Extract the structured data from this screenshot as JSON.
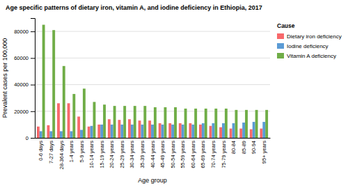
{
  "chart_data": {
    "type": "bar",
    "title": "Age specific patterns of dietary iron, vitamin A, and iodine deficiency in Ethiopia, 2017",
    "x_label": "Age group",
    "y_label": "Prevalent cases per 100,000",
    "legend_title": "Cause",
    "categories": [
      "0-6 days",
      "7-27 days",
      "28-364 days",
      "1-4 years",
      "5-9 years",
      "10-14 years",
      "15-19 years",
      "20-24 years",
      "25-29 years",
      "30-34 years",
      "35-39 years",
      "40-44 years",
      "45-49 years",
      "50-54 years",
      "55-59 years",
      "60-64 years",
      "65-69 years",
      "70-74 years",
      "75-79 years",
      "80-84",
      "85-89",
      "90-94",
      "95+ years"
    ],
    "series": [
      {
        "name": "Dietary iron deficiency",
        "color": "#f8696b",
        "values": [
          8500,
          9500,
          26000,
          26000,
          16000,
          8500,
          10000,
          14000,
          13500,
          14000,
          13000,
          13000,
          11000,
          11000,
          11000,
          11000,
          10000,
          9000,
          8000,
          7000,
          7000,
          6500,
          7000
        ]
      },
      {
        "name": "Iodine deficiency",
        "color": "#5b9bd5",
        "values": [
          5000,
          5000,
          5000,
          5000,
          6000,
          9000,
          10000,
          10000,
          10000,
          10000,
          10000,
          10000,
          10000,
          10000,
          10000,
          10000,
          11000,
          11000,
          11000,
          11000,
          11500,
          12000,
          12000
        ]
      },
      {
        "name": "Vitamin A deficiency",
        "color": "#70ad47",
        "values": [
          85000,
          81000,
          54000,
          33000,
          37000,
          27000,
          25000,
          24000,
          24000,
          24000,
          24000,
          23000,
          23000,
          23000,
          22000,
          22000,
          22000,
          22000,
          22000,
          21000,
          21000,
          21000,
          21000
        ]
      }
    ],
    "ylim": [
      0,
      90000
    ],
    "yticks": [
      0,
      20000,
      40000,
      60000,
      80000
    ],
    "grid": true,
    "legend": "right"
  }
}
